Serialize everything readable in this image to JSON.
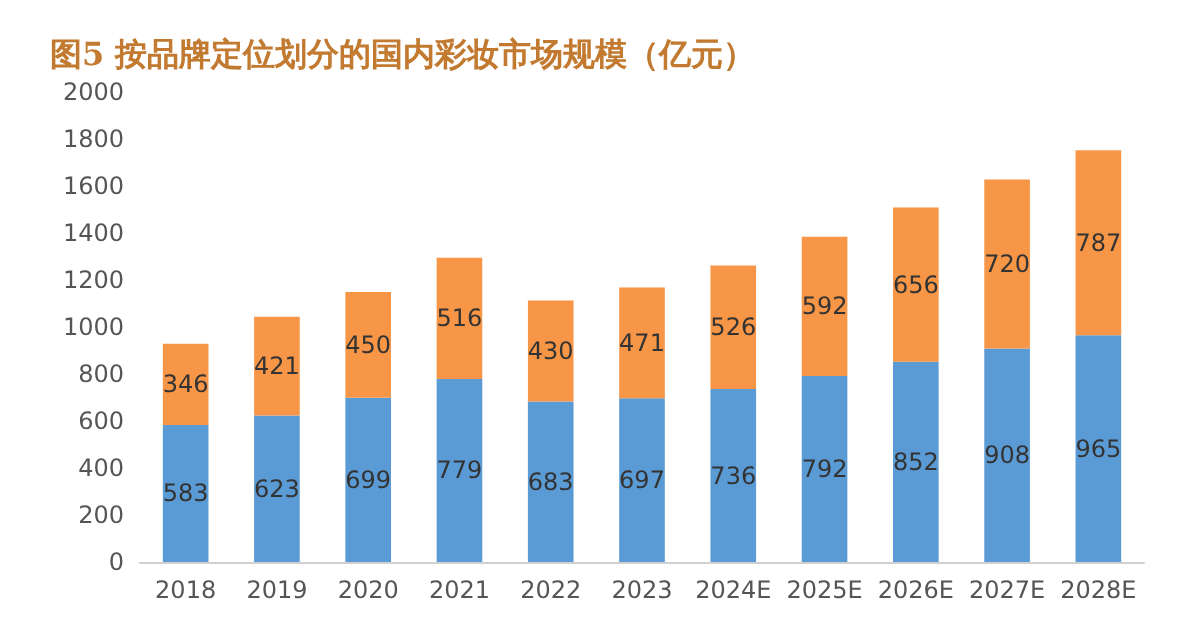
{
  "chart_data": {
    "type": "bar",
    "title": "图5 按品牌定位划分的国内彩妆市场规模（亿元）",
    "categories": [
      "2018",
      "2019",
      "2020",
      "2021",
      "2022",
      "2023",
      "2024E",
      "2025E",
      "2026E",
      "2027E",
      "2028E"
    ],
    "stacked": true,
    "data_labels": true,
    "grid": false,
    "ylim": [
      0,
      2000
    ],
    "yticks": [
      0,
      200,
      400,
      600,
      800,
      1000,
      1200,
      1400,
      1600,
      1800,
      2000
    ],
    "series": [
      {
        "color": "#5b9bd5",
        "values": [
          583,
          623,
          699,
          779,
          683,
          697,
          736,
          792,
          852,
          908,
          965
        ]
      },
      {
        "color": "#f79646",
        "values": [
          346,
          421,
          450,
          516,
          430,
          471,
          526,
          592,
          656,
          720,
          787
        ]
      }
    ]
  }
}
